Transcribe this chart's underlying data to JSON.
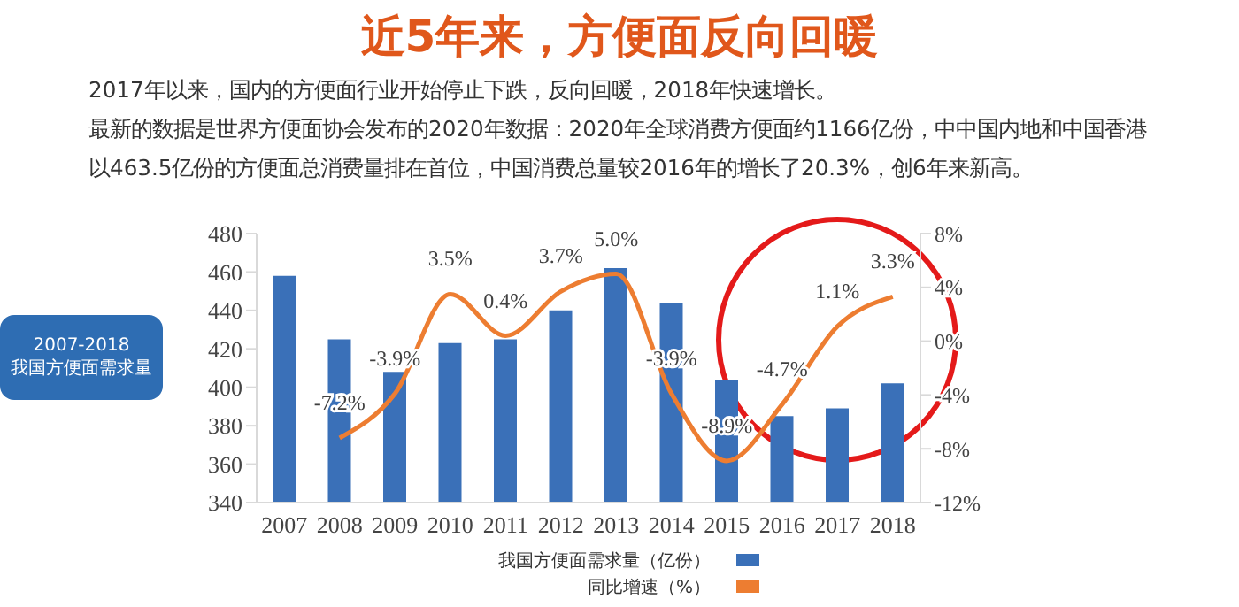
{
  "chart_data": {
    "type": "bar",
    "title": "近5年来，方便面反向回暖",
    "subtitle": "2017年以来，国内的方便面行业开始停止下跌，反向回暖，2018年快速增长。",
    "annotations": [
      "最新的数据是世界方便面协会发布的2020年数据：2020年全球消费方便面约1166亿份，中中国内地和中国香港以463.5亿份的方便面总消费量排在首位，中国消费总量较2016年的增长了20.3%，创6年来新高。",
      "2007-2018\n我国方便面需求量"
    ],
    "categories": [
      "2007",
      "2008",
      "2009",
      "2010",
      "2011",
      "2012",
      "2013",
      "2014",
      "2015",
      "2016",
      "2017",
      "2018"
    ],
    "series": [
      {
        "name": "我国方便面需求量（亿份）",
        "color": "#3a70b8",
        "values": [
          458,
          425,
          408,
          423,
          425,
          440,
          462,
          444,
          404,
          385,
          389,
          402
        ]
      },
      {
        "name": "同比增速（%）",
        "type": "line",
        "axis": "y2",
        "color": "#ed7d31",
        "values": [
          null,
          -7.2,
          -3.9,
          3.5,
          0.4,
          3.7,
          5.0,
          -3.9,
          -8.9,
          -4.7,
          1.1,
          3.3
        ],
        "value_labels": [
          null,
          "-7.2%",
          "-3.9%",
          "3.5%",
          "0.4%",
          "3.7%",
          "5.0%",
          "-3.9%",
          "-8.9%",
          "-4.7%",
          "1.1%",
          "3.3%"
        ]
      }
    ],
    "ylim": [
      340,
      480
    ],
    "yticks": [
      340,
      360,
      380,
      400,
      420,
      440,
      460,
      480
    ],
    "y2lim": [
      -12,
      8
    ],
    "y2ticks": [
      {
        "value": -12,
        "label": "-12%"
      },
      {
        "value": -8,
        "label": "-8%"
      },
      {
        "value": -4,
        "label": "-4%"
      },
      {
        "value": 0,
        "label": "0%"
      },
      {
        "value": 4,
        "label": "4%"
      },
      {
        "value": 8,
        "label": "8%"
      }
    ],
    "grid": false,
    "legend": "bottom",
    "marker": "none",
    "line_style": "solid"
  }
}
